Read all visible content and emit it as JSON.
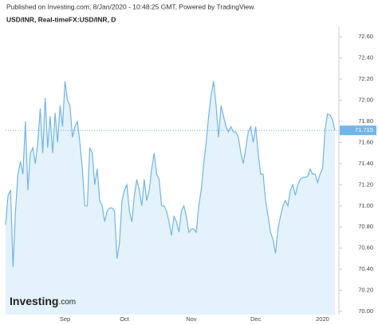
{
  "chart_data": {
    "type": "area",
    "published": "Published on Investing.com, 8/Jan/2020 - 10:48:25 GMT, Powered by TradingView.",
    "title": "USD/INR, Real-timeFX:USD/INR, D",
    "logo": {
      "brand": "Investing",
      "suffix": ".com"
    },
    "color": "#72b5e8",
    "fill": "#e4f2fc",
    "current_value": 71.715,
    "categories": [
      null,
      null,
      null,
      null,
      null,
      null,
      null,
      null,
      null,
      null,
      null,
      null,
      null,
      null,
      null,
      null,
      null,
      null,
      null,
      null,
      null,
      null,
      null,
      null,
      "Sep",
      null,
      null,
      null,
      null,
      null,
      null,
      null,
      null,
      null,
      null,
      null,
      null,
      null,
      null,
      null,
      null,
      null,
      null,
      null,
      null,
      null,
      null,
      null,
      "Oct",
      null,
      null,
      null,
      null,
      null,
      null,
      null,
      null,
      null,
      null,
      null,
      null,
      null,
      null,
      null,
      null,
      null,
      null,
      null,
      null,
      null,
      null,
      null,
      null,
      null,
      null,
      "Nov",
      null,
      null,
      null,
      null,
      null,
      null,
      null,
      null,
      null,
      null,
      null,
      null,
      null,
      null,
      null,
      null,
      null,
      null,
      null,
      null,
      null,
      null,
      null,
      null,
      null,
      "Dec",
      null,
      null,
      null,
      null,
      null,
      null,
      null,
      null,
      null,
      null,
      null,
      null,
      null,
      null,
      null,
      null,
      null,
      null,
      null,
      null,
      null,
      null,
      null,
      null,
      null,
      null,
      "2020",
      null,
      null,
      null,
      null,
      null
    ],
    "values": [
      70.82,
      71.1,
      71.15,
      70.42,
      70.95,
      71.3,
      71.42,
      71.3,
      71.8,
      71.15,
      71.5,
      71.55,
      71.4,
      71.6,
      71.92,
      71.5,
      72.02,
      71.55,
      71.85,
      71.5,
      71.88,
      71.6,
      71.95,
      71.75,
      72.18,
      72.0,
      71.95,
      71.65,
      71.75,
      71.8,
      71.6,
      71.35,
      71.0,
      71.0,
      71.55,
      71.5,
      71.2,
      71.35,
      71.05,
      71.0,
      70.85,
      70.95,
      70.98,
      70.98,
      70.95,
      70.5,
      70.65,
      71.05,
      71.15,
      71.2,
      70.95,
      70.85,
      71.1,
      71.25,
      71.15,
      71.0,
      71.25,
      71.05,
      71.15,
      71.35,
      71.5,
      71.3,
      71.25,
      71.0,
      71.0,
      70.95,
      70.85,
      70.72,
      70.9,
      70.85,
      70.75,
      70.95,
      71.0,
      70.9,
      70.75,
      70.78,
      70.78,
      70.75,
      71.0,
      71.15,
      71.4,
      71.6,
      71.85,
      72.05,
      72.18,
      71.95,
      71.65,
      71.95,
      71.85,
      71.75,
      71.7,
      71.75,
      71.7,
      71.7,
      71.65,
      71.5,
      71.4,
      71.55,
      71.7,
      71.75,
      71.6,
      71.75,
      71.5,
      71.3,
      71.3,
      71.05,
      70.9,
      70.75,
      70.68,
      70.55,
      70.78,
      70.9,
      71.0,
      71.05,
      71.0,
      71.15,
      71.2,
      71.1,
      71.2,
      71.25,
      71.27,
      71.27,
      71.28,
      71.35,
      71.3,
      71.3,
      71.22,
      71.3,
      71.35,
      71.72,
      71.87,
      71.86,
      71.82,
      71.715
    ],
    "ylim": [
      69.97,
      72.7
    ],
    "yticks": [
      {
        "value": 70.0,
        "label": "70.00"
      },
      {
        "value": 70.2,
        "label": "70.20"
      },
      {
        "value": 70.4,
        "label": "70.40"
      },
      {
        "value": 70.6,
        "label": "70.60"
      },
      {
        "value": 70.8,
        "label": "70.80"
      },
      {
        "value": 71.0,
        "label": "71.00"
      },
      {
        "value": 71.2,
        "label": "71.20"
      },
      {
        "value": 71.4,
        "label": "71.40"
      },
      {
        "value": 71.6,
        "label": "71.60"
      },
      {
        "value": 71.8,
        "label": "71.80"
      },
      {
        "value": 72.0,
        "label": "72.00"
      },
      {
        "value": 72.2,
        "label": "72.20"
      },
      {
        "value": 72.4,
        "label": "72.40"
      },
      {
        "value": 72.6,
        "label": "72.60"
      }
    ]
  }
}
